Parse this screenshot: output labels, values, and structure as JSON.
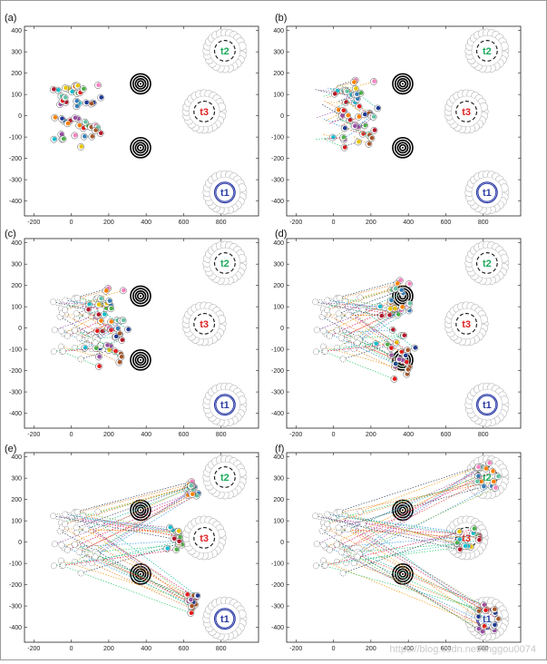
{
  "colors": {
    "t1": "#2b3aa5",
    "t2": "#1faa5b",
    "t3": "#dd2222",
    "axis": "#222222",
    "path": [
      "#e74c3c",
      "#3498db",
      "#2ecc71",
      "#f39c12",
      "#9b59b6",
      "#1abc9c",
      "#e67e22",
      "#34495e",
      "#d81b60",
      "#7cb342"
    ],
    "dots": [
      "#e41a1c",
      "#377eb8",
      "#4daf4a",
      "#984ea3",
      "#ff7f00",
      "#e6c300",
      "#a65628",
      "#f781bf",
      "#17becf",
      "#1f3a93",
      "#66c2a5",
      "#b2182b"
    ]
  },
  "watermark": "https://blog.csdn.net/linggou0074",
  "chart_data": [
    {
      "label": "(a)",
      "type": "scatter",
      "xlim": [
        -250,
        1000
      ],
      "ylim": [
        -470,
        420
      ],
      "xticks": [
        -200,
        0,
        200,
        400,
        600,
        800
      ],
      "yticks": [
        -400,
        -300,
        -200,
        -100,
        0,
        100,
        200,
        300,
        400
      ],
      "obstacles": [
        {
          "x": 370,
          "y": 150
        },
        {
          "x": 370,
          "y": -150
        }
      ],
      "targets": [
        {
          "name": "t1",
          "x": 820,
          "y": -360,
          "ring": "solid"
        },
        {
          "name": "t2",
          "x": 820,
          "y": 305,
          "ring": "dashed"
        },
        {
          "name": "t3",
          "x": 710,
          "y": 20,
          "ring": "dashed"
        }
      ],
      "agents": {
        "show_start": false,
        "progress": 0.0,
        "pile": false
      }
    },
    {
      "label": "(b)",
      "type": "scatter",
      "xlim": [
        -250,
        1000
      ],
      "ylim": [
        -470,
        420
      ],
      "xticks": [
        -200,
        0,
        200,
        400,
        600,
        800
      ],
      "yticks": [
        -400,
        -300,
        -200,
        -100,
        0,
        100,
        200,
        300,
        400
      ],
      "obstacles": [
        {
          "x": 370,
          "y": 150
        },
        {
          "x": 370,
          "y": -150
        }
      ],
      "targets": [
        {
          "name": "t1",
          "x": 820,
          "y": -360,
          "ring": "solid"
        },
        {
          "name": "t2",
          "x": 820,
          "y": 305,
          "ring": "dashed"
        },
        {
          "name": "t3",
          "x": 710,
          "y": 20,
          "ring": "dashed"
        }
      ],
      "agents": {
        "show_start": false,
        "progress": 0.12,
        "pile": false
      }
    },
    {
      "label": "(c)",
      "type": "scatter",
      "xlim": [
        -250,
        1000
      ],
      "ylim": [
        -470,
        420
      ],
      "xticks": [
        -200,
        0,
        200,
        400,
        600,
        800
      ],
      "yticks": [
        -400,
        -300,
        -200,
        -100,
        0,
        100,
        200,
        300,
        400
      ],
      "obstacles": [
        {
          "x": 370,
          "y": 150
        },
        {
          "x": 370,
          "y": -150
        }
      ],
      "targets": [
        {
          "name": "t1",
          "x": 820,
          "y": -360,
          "ring": "solid"
        },
        {
          "name": "t2",
          "x": 820,
          "y": 305,
          "ring": "dashed"
        },
        {
          "name": "t3",
          "x": 710,
          "y": 20,
          "ring": "dashed"
        }
      ],
      "agents": {
        "show_start": true,
        "progress": 0.22,
        "pile": false
      }
    },
    {
      "label": "(d)",
      "type": "scatter",
      "xlim": [
        -250,
        1000
      ],
      "ylim": [
        -470,
        420
      ],
      "xticks": [
        -200,
        0,
        200,
        400,
        600,
        800
      ],
      "yticks": [
        -400,
        -300,
        -200,
        -100,
        0,
        100,
        200,
        300,
        400
      ],
      "obstacles": [
        {
          "x": 370,
          "y": 150
        },
        {
          "x": 370,
          "y": -150
        }
      ],
      "targets": [
        {
          "name": "t1",
          "x": 820,
          "y": -360,
          "ring": "solid"
        },
        {
          "name": "t2",
          "x": 820,
          "y": 305,
          "ring": "dashed"
        },
        {
          "name": "t3",
          "x": 710,
          "y": 20,
          "ring": "dashed"
        }
      ],
      "agents": {
        "show_start": true,
        "progress": 0.42,
        "pile": false
      }
    },
    {
      "label": "(e)",
      "type": "scatter",
      "xlim": [
        -250,
        1000
      ],
      "ylim": [
        -470,
        420
      ],
      "xticks": [
        -200,
        0,
        200,
        400,
        600,
        800
      ],
      "yticks": [
        -400,
        -300,
        -200,
        -100,
        0,
        100,
        200,
        300,
        400
      ],
      "obstacles": [
        {
          "x": 370,
          "y": 150
        },
        {
          "x": 370,
          "y": -150
        }
      ],
      "targets": [
        {
          "name": "t1",
          "x": 820,
          "y": -360,
          "ring": "solid"
        },
        {
          "name": "t2",
          "x": 820,
          "y": 305,
          "ring": "dashed"
        },
        {
          "name": "t3",
          "x": 710,
          "y": 20,
          "ring": "dashed"
        }
      ],
      "agents": {
        "show_start": true,
        "progress": 0.78,
        "pile": false
      }
    },
    {
      "label": "(f)",
      "type": "scatter",
      "xlim": [
        -250,
        1000
      ],
      "ylim": [
        -470,
        420
      ],
      "xticks": [
        -200,
        0,
        200,
        400,
        600,
        800
      ],
      "yticks": [
        -400,
        -300,
        -200,
        -100,
        0,
        100,
        200,
        300,
        400
      ],
      "obstacles": [
        {
          "x": 370,
          "y": 150
        },
        {
          "x": 370,
          "y": -150
        }
      ],
      "targets": [
        {
          "name": "t1",
          "x": 820,
          "y": -360,
          "ring": "solid"
        },
        {
          "name": "t2",
          "x": 820,
          "y": 305,
          "ring": "dashed"
        },
        {
          "name": "t3",
          "x": 710,
          "y": 20,
          "ring": "dashed"
        }
      ],
      "agents": {
        "show_start": true,
        "progress": 1.0,
        "pile": true
      }
    }
  ]
}
